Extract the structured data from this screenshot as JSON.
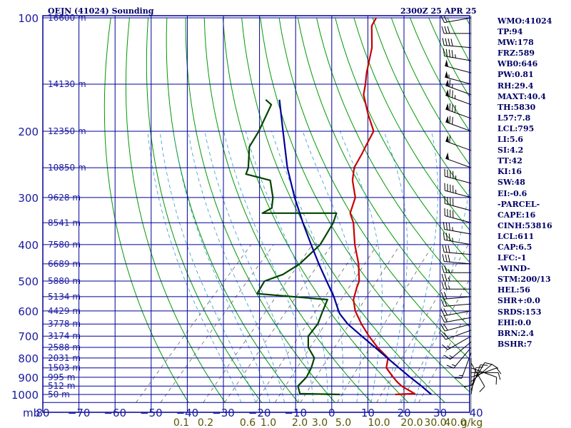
{
  "header": {
    "station": "OEJN (41024) Sounding",
    "valid_time": "2300Z 25 APR 25"
  },
  "indices": [
    "WMO:41024",
    "TP:94",
    "MW:178",
    "FRZ:589",
    "WB0:646",
    "PW:0.81",
    "RH:29.4",
    "MAXT:40.4",
    "TH:5830",
    "L57:7.8",
    "LCL:795",
    "LI:5.6",
    "SI:4.2",
    "TT:42",
    "KI:16",
    "SW:48",
    "EI:-0.6",
    "-PARCEL-",
    "CAPE:16",
    "CINH:53816",
    "LCL:611",
    "CAP:6.5",
    "LFC:-1",
    "-WIND-",
    "STM:200/13",
    "HEL:56",
    "SHR+:0.0",
    "SRDS:153",
    "EHI:0.0",
    "BRN:2.4",
    "BSHR:7"
  ],
  "chart_data": {
    "type": "line",
    "title": "OEJN (41024) Sounding",
    "subtitle": "2300Z 25 APR 25",
    "xlabel": "",
    "ylabel": "mb",
    "y_scale": "log",
    "xlim": [
      -80,
      50
    ],
    "ylim": [
      1050,
      100
    ],
    "pressure_ticks": [
      100,
      200,
      300,
      400,
      500,
      600,
      700,
      800,
      900,
      1000
    ],
    "temperature_ticks": [
      -80,
      -70,
      -60,
      -50,
      -40,
      -30,
      -20,
      -10,
      0,
      10,
      20,
      30,
      40
    ],
    "temperature_tick_labels": [
      "80",
      "−70",
      "−60",
      "−50",
      "−40",
      "−30",
      "−20",
      "−10",
      "0",
      "10",
      "20",
      "30",
      "40"
    ],
    "mixing_ratio_labels": [
      "0.1",
      "0.2",
      "0.6",
      "1.0",
      "2.0",
      "3.0",
      "5.0",
      "10.0",
      "20.0",
      "30.0",
      "40.0",
      "g/kg"
    ],
    "height_labels": [
      {
        "p": 100,
        "label": "16600 m"
      },
      {
        "p": 150,
        "label": "14130 m"
      },
      {
        "p": 200,
        "label": "12350 m"
      },
      {
        "p": 250,
        "label": "10850 m"
      },
      {
        "p": 300,
        "label": "9628 m"
      },
      {
        "p": 350,
        "label": "8541 m"
      },
      {
        "p": 400,
        "label": "7580 m"
      },
      {
        "p": 450,
        "label": "6689 m"
      },
      {
        "p": 500,
        "label": "5880 m"
      },
      {
        "p": 550,
        "label": "5134 m"
      },
      {
        "p": 600,
        "label": "4429 m"
      },
      {
        "p": 650,
        "label": "3778 m"
      },
      {
        "p": 700,
        "label": "3174 m"
      },
      {
        "p": 750,
        "label": "2588 m"
      },
      {
        "p": 800,
        "label": "2031 m"
      },
      {
        "p": 850,
        "label": "1503 m"
      },
      {
        "p": 900,
        "label": "995 m"
      },
      {
        "p": 950,
        "label": "512 m"
      },
      {
        "p": 1000,
        "label": "50 m"
      }
    ],
    "series": [
      {
        "color": "#c80000",
        "points": [
          [
            1000,
            28.6
          ],
          [
            995,
            33.8
          ],
          [
            950,
            28.2
          ],
          [
            925,
            25.8
          ],
          [
            900,
            23.6
          ],
          [
            850,
            19.3
          ],
          [
            800,
            17.2
          ],
          [
            750,
            11.6
          ],
          [
            700,
            6.3
          ],
          [
            650,
            1.1
          ],
          [
            600,
            -4.0
          ],
          [
            560,
            -7.4
          ],
          [
            520,
            -9.6
          ],
          [
            500,
            -10.6
          ],
          [
            450,
            -15.2
          ],
          [
            400,
            -21.2
          ],
          [
            350,
            -27.2
          ],
          [
            330,
            -30.6
          ],
          [
            300,
            -33.2
          ],
          [
            270,
            -38.4
          ],
          [
            250,
            -41.2
          ],
          [
            230,
            -42.6
          ],
          [
            215,
            -43.9
          ],
          [
            200,
            -45.2
          ],
          [
            180,
            -51.2
          ],
          [
            160,
            -57.4
          ],
          [
            150,
            -59.6
          ],
          [
            140,
            -62.2
          ],
          [
            120,
            -67.2
          ],
          [
            105,
            -72.9
          ],
          [
            100,
            -73.7
          ]
        ]
      },
      {
        "color": "#004400",
        "points": [
          [
            1000,
            13.3
          ],
          [
            995,
            2.0
          ],
          [
            950,
            -0.5
          ],
          [
            900,
            -0.4
          ],
          [
            850,
            -1.5
          ],
          [
            800,
            -3.2
          ],
          [
            750,
            -7.6
          ],
          [
            700,
            -10.5
          ],
          [
            650,
            -11.0
          ],
          [
            600,
            -13.0
          ],
          [
            560,
            -14.6
          ],
          [
            540,
            -35.6
          ],
          [
            500,
            -36.8
          ],
          [
            480,
            -33.4
          ],
          [
            450,
            -31.5
          ],
          [
            400,
            -30.8
          ],
          [
            350,
            -32.8
          ],
          [
            330,
            -34.4
          ],
          [
            330,
            -54.9
          ],
          [
            320,
            -53.6
          ],
          [
            300,
            -56.0
          ],
          [
            270,
            -61.2
          ],
          [
            260,
            -69.5
          ],
          [
            250,
            -70.5
          ],
          [
            220,
            -75.6
          ],
          [
            200,
            -77.0
          ],
          [
            170,
            -80.4
          ],
          [
            165,
            -83.2
          ]
        ]
      },
      {
        "color": "#000099",
        "points": [
          [
            1000,
            38.6
          ],
          [
            950,
            33.7
          ],
          [
            900,
            28.3
          ],
          [
            850,
            22.8
          ],
          [
            800,
            17.0
          ],
          [
            750,
            10.9
          ],
          [
            700,
            4.3
          ],
          [
            650,
            -2.7
          ],
          [
            611,
            -7.5
          ],
          [
            600,
            -8.6
          ],
          [
            550,
            -13.6
          ],
          [
            500,
            -19.6
          ],
          [
            450,
            -26.2
          ],
          [
            400,
            -33.3
          ],
          [
            350,
            -41.2
          ],
          [
            300,
            -50.0
          ],
          [
            250,
            -59.7
          ],
          [
            200,
            -70.3
          ],
          [
            165,
            -79.4
          ]
        ]
      }
    ],
    "wind_barbs": [
      {
        "p": 1000,
        "dir": 10,
        "spd": 10
      },
      {
        "p": 975,
        "dir": 20,
        "spd": 10
      },
      {
        "p": 950,
        "dir": 30,
        "spd": 10
      },
      {
        "p": 925,
        "dir": 50,
        "spd": 10
      },
      {
        "p": 900,
        "dir": 70,
        "spd": 10
      },
      {
        "p": 875,
        "dir": 90,
        "spd": 10
      },
      {
        "p": 850,
        "dir": 110,
        "spd": 10
      },
      {
        "p": 825,
        "dir": 150,
        "spd": 10
      },
      {
        "p": 800,
        "dir": 180,
        "spd": 10
      },
      {
        "p": 775,
        "dir": 200,
        "spd": 15
      },
      {
        "p": 750,
        "dir": 220,
        "spd": 15
      },
      {
        "p": 725,
        "dir": 230,
        "spd": 15
      },
      {
        "p": 700,
        "dir": 240,
        "spd": 15
      },
      {
        "p": 675,
        "dir": 250,
        "spd": 20
      },
      {
        "p": 650,
        "dir": 255,
        "spd": 20
      },
      {
        "p": 625,
        "dir": 260,
        "spd": 20
      },
      {
        "p": 600,
        "dir": 260,
        "spd": 20
      },
      {
        "p": 575,
        "dir": 265,
        "spd": 20
      },
      {
        "p": 550,
        "dir": 265,
        "spd": 20
      },
      {
        "p": 525,
        "dir": 270,
        "spd": 25
      },
      {
        "p": 500,
        "dir": 270,
        "spd": 25
      },
      {
        "p": 475,
        "dir": 270,
        "spd": 25
      },
      {
        "p": 450,
        "dir": 275,
        "spd": 30
      },
      {
        "p": 425,
        "dir": 275,
        "spd": 30
      },
      {
        "p": 400,
        "dir": 280,
        "spd": 35
      },
      {
        "p": 375,
        "dir": 280,
        "spd": 35
      },
      {
        "p": 350,
        "dir": 285,
        "spd": 40
      },
      {
        "p": 325,
        "dir": 285,
        "spd": 40
      },
      {
        "p": 300,
        "dir": 285,
        "spd": 45
      },
      {
        "p": 275,
        "dir": 285,
        "spd": 45
      },
      {
        "p": 250,
        "dir": 290,
        "spd": 50
      },
      {
        "p": 225,
        "dir": 290,
        "spd": 60
      },
      {
        "p": 200,
        "dir": 290,
        "spd": 70
      },
      {
        "p": 185,
        "dir": 290,
        "spd": 80
      },
      {
        "p": 170,
        "dir": 290,
        "spd": 75
      },
      {
        "p": 160,
        "dir": 290,
        "spd": 65
      },
      {
        "p": 150,
        "dir": 285,
        "spd": 55
      },
      {
        "p": 140,
        "dir": 285,
        "spd": 50
      },
      {
        "p": 130,
        "dir": 280,
        "spd": 45
      },
      {
        "p": 120,
        "dir": 275,
        "spd": 40
      },
      {
        "p": 110,
        "dir": 270,
        "spd": 30
      },
      {
        "p": 100,
        "dir": 260,
        "spd": 20
      }
    ],
    "colors": {
      "isobars": "#000099",
      "dry_adiabats": "#009900",
      "mixing_ratio": "#666666",
      "moist_adiabats": "#3399cc",
      "wind_barbs": "#000000"
    },
    "legend": "none",
    "grid": true
  }
}
